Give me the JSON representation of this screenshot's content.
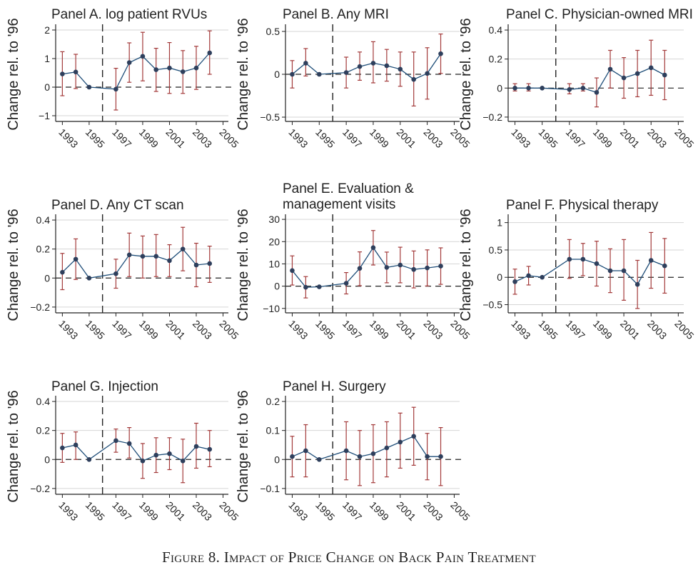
{
  "caption": "Figure 8. Impact of Price Change on Back Pain Treatment",
  "colors": {
    "line": "#1f4e79",
    "marker": "#2e3f5c",
    "ci": "#a33a3a",
    "grid": "#d6d6d6",
    "axis": "#222222",
    "text": "#222222"
  },
  "x_tick_labels": [
    "1993",
    "1995",
    "1997",
    "1999",
    "2001",
    "2003",
    "2005"
  ],
  "chart_data": [
    {
      "type": "line",
      "title": "Panel A. log patient RVUs",
      "ylabel": "Change rel. to '96",
      "xlabel": "",
      "xlim": [
        1992.5,
        2005.4
      ],
      "ylim": [
        -1.2,
        2.1
      ],
      "yticks": [
        2,
        1,
        0,
        -1
      ],
      "ytick_labels": [
        "2",
        "1",
        "0",
        "−1"
      ],
      "reference_year": 1996,
      "grid": true,
      "x": [
        1993,
        1994,
        1995,
        1997,
        1998,
        1999,
        2000,
        2001,
        2002,
        2003,
        2004
      ],
      "y": [
        0.46,
        0.53,
        0.0,
        -0.07,
        0.86,
        1.08,
        0.61,
        0.67,
        0.54,
        0.67,
        1.2
      ],
      "ci_low": [
        -0.3,
        -0.05,
        0.0,
        -0.8,
        0.17,
        0.22,
        -0.15,
        -0.22,
        -0.22,
        -0.08,
        0.45
      ],
      "ci_high": [
        1.24,
        1.15,
        0.0,
        0.66,
        1.55,
        1.92,
        1.36,
        1.56,
        1.28,
        1.43,
        1.97
      ]
    },
    {
      "type": "line",
      "title": "Panel B. Any MRI",
      "ylabel": "Change rel. to '96",
      "xlabel": "",
      "xlim": [
        1992.5,
        2005.4
      ],
      "ylim": [
        -0.55,
        0.55
      ],
      "yticks": [
        0.5,
        0,
        -0.5
      ],
      "ytick_labels": [
        "0.5",
        "0",
        "−0.5"
      ],
      "reference_year": 1996,
      "grid": true,
      "x": [
        1993,
        1994,
        1995,
        1997,
        1998,
        1999,
        2000,
        2001,
        2002,
        2003,
        2004
      ],
      "y": [
        0.0,
        0.13,
        0.0,
        0.02,
        0.09,
        0.13,
        0.1,
        0.06,
        -0.06,
        0.01,
        0.24
      ],
      "ci_low": [
        -0.16,
        -0.02,
        0.0,
        -0.16,
        -0.07,
        -0.1,
        -0.08,
        -0.14,
        -0.37,
        -0.29,
        0.01
      ],
      "ci_high": [
        0.16,
        0.3,
        0.0,
        0.2,
        0.26,
        0.38,
        0.29,
        0.26,
        0.26,
        0.31,
        0.47
      ]
    },
    {
      "type": "line",
      "title": "Panel C. Physician-owned MRI",
      "ylabel": "Change rel. to '96",
      "xlabel": "",
      "xlim": [
        1992.5,
        2005.4
      ],
      "ylim": [
        -0.23,
        0.42
      ],
      "yticks": [
        0.4,
        0.2,
        0,
        -0.2
      ],
      "ytick_labels": [
        "0.4",
        "0.2",
        "0",
        "−0.2"
      ],
      "reference_year": 1996,
      "grid": true,
      "x": [
        1993,
        1994,
        1995,
        1997,
        1998,
        1999,
        2000,
        2001,
        2002,
        2003,
        2004
      ],
      "y": [
        0.0,
        0.0,
        0.0,
        -0.01,
        0.0,
        -0.03,
        0.13,
        0.07,
        0.1,
        0.14,
        0.09
      ],
      "ci_low": [
        -0.02,
        -0.02,
        0.0,
        -0.04,
        -0.02,
        -0.13,
        0.0,
        -0.07,
        -0.06,
        -0.05,
        -0.08
      ],
      "ci_high": [
        0.03,
        0.03,
        0.0,
        0.03,
        0.03,
        0.07,
        0.26,
        0.21,
        0.26,
        0.33,
        0.26
      ]
    },
    {
      "type": "line",
      "title": "Panel D. Any CT scan",
      "ylabel": "Change rel. to '96",
      "xlabel": "",
      "xlim": [
        1992.5,
        2005.4
      ],
      "ylim": [
        -0.24,
        0.42
      ],
      "yticks": [
        0.4,
        0.2,
        0,
        -0.2
      ],
      "ytick_labels": [
        "0.4",
        "0.2",
        "0",
        "−0.2"
      ],
      "reference_year": 1996,
      "grid": true,
      "x": [
        1993,
        1994,
        1995,
        1997,
        1998,
        1999,
        2000,
        2001,
        2002,
        2003,
        2004
      ],
      "y": [
        0.04,
        0.13,
        0.0,
        0.03,
        0.16,
        0.15,
        0.15,
        0.12,
        0.2,
        0.09,
        0.1
      ],
      "ci_low": [
        -0.08,
        -0.01,
        0.0,
        -0.07,
        0.01,
        0.0,
        0.01,
        0.01,
        0.05,
        -0.06,
        -0.03
      ],
      "ci_high": [
        0.17,
        0.27,
        0.0,
        0.13,
        0.31,
        0.29,
        0.3,
        0.23,
        0.35,
        0.24,
        0.22
      ]
    },
    {
      "type": "line",
      "title": "Panel E. Evaluation & management visits",
      "title_lines": [
        "Panel E. Evaluation &",
        "management visits"
      ],
      "ylabel": "Change rel. to '96",
      "xlabel": "",
      "xlim": [
        1992.5,
        2005.4
      ],
      "ylim": [
        -12,
        31
      ],
      "yticks": [
        30,
        20,
        10,
        0,
        -10
      ],
      "ytick_labels": [
        "30",
        "20",
        "10",
        "0",
        "−10"
      ],
      "reference_year": 1996,
      "grid": true,
      "x": [
        1993,
        1994,
        1995,
        1997,
        1998,
        1999,
        2000,
        2001,
        2002,
        2003,
        2004
      ],
      "y": [
        7,
        -0.5,
        -0.3,
        1.3,
        8,
        17.3,
        8.4,
        9.5,
        7.5,
        8.2,
        9
      ],
      "ci_low": [
        0.5,
        -5.3,
        -0.3,
        -3.5,
        0.2,
        9.5,
        1.5,
        1.5,
        -0.8,
        0.1,
        0.8
      ],
      "ci_high": [
        13.6,
        4.3,
        -0.3,
        6.1,
        15.4,
        25,
        15.3,
        17.5,
        15.8,
        16.3,
        17.2
      ]
    },
    {
      "type": "line",
      "title": "Panel F. Physical therapy",
      "ylabel": "Change rel. to '96",
      "xlabel": "",
      "xlim": [
        1992.5,
        2005.4
      ],
      "ylim": [
        -0.65,
        1.1
      ],
      "yticks": [
        1,
        0.5,
        0,
        -0.5
      ],
      "ytick_labels": [
        "1",
        "0.5",
        "0",
        "−0.5"
      ],
      "reference_year": 1996,
      "grid": true,
      "x": [
        1993,
        1994,
        1995,
        1997,
        1998,
        1999,
        2000,
        2001,
        2002,
        2003,
        2004
      ],
      "y": [
        -0.08,
        0.03,
        0.0,
        0.33,
        0.33,
        0.25,
        0.12,
        0.12,
        -0.13,
        0.31,
        0.21
      ],
      "ci_low": [
        -0.31,
        -0.14,
        0.0,
        -0.02,
        0.03,
        -0.16,
        -0.28,
        -0.42,
        -0.57,
        -0.2,
        -0.29
      ],
      "ci_high": [
        0.15,
        0.2,
        0.0,
        0.69,
        0.62,
        0.66,
        0.52,
        0.69,
        0.31,
        0.82,
        0.71
      ]
    },
    {
      "type": "line",
      "title": "Panel G. Injection",
      "ylabel": "Change rel. to '96",
      "xlabel": "",
      "xlim": [
        1992.5,
        2005.4
      ],
      "ylim": [
        -0.24,
        0.42
      ],
      "yticks": [
        0.4,
        0.2,
        0,
        -0.2
      ],
      "ytick_labels": [
        "0.4",
        "0.2",
        "0",
        "−0.2"
      ],
      "reference_year": 1996,
      "grid": true,
      "x": [
        1993,
        1994,
        1995,
        1997,
        1998,
        1999,
        2000,
        2001,
        2002,
        2003,
        2004
      ],
      "y": [
        0.08,
        0.1,
        0.0,
        0.13,
        0.11,
        -0.01,
        0.03,
        0.04,
        -0.01,
        0.09,
        0.07
      ],
      "ci_low": [
        -0.02,
        0.0,
        0.0,
        0.05,
        0.01,
        -0.13,
        -0.09,
        -0.07,
        -0.16,
        -0.06,
        -0.05
      ],
      "ci_high": [
        0.18,
        0.19,
        0.0,
        0.21,
        0.22,
        0.11,
        0.15,
        0.15,
        0.14,
        0.25,
        0.2
      ]
    },
    {
      "type": "line",
      "title": "Panel H. Surgery",
      "ylabel": "Change rel. to '96",
      "xlabel": "",
      "xlim": [
        1992.5,
        2005.4
      ],
      "ylim": [
        -0.12,
        0.21
      ],
      "yticks": [
        0.2,
        0.1,
        0,
        -0.1
      ],
      "ytick_labels": [
        "0.2",
        "0.1",
        "0",
        "−0.1"
      ],
      "reference_year": 1996,
      "grid": true,
      "x": [
        1993,
        1994,
        1995,
        1997,
        1998,
        1999,
        2000,
        2001,
        2002,
        2003,
        2004
      ],
      "y": [
        0.01,
        0.03,
        0.0,
        0.03,
        0.01,
        0.02,
        0.04,
        0.06,
        0.08,
        0.01,
        0.01
      ],
      "ci_low": [
        -0.06,
        -0.06,
        0.0,
        -0.07,
        -0.09,
        -0.08,
        -0.06,
        -0.03,
        -0.02,
        -0.07,
        -0.09
      ],
      "ci_high": [
        0.08,
        0.12,
        0.0,
        0.13,
        0.1,
        0.12,
        0.13,
        0.16,
        0.18,
        0.09,
        0.11
      ]
    }
  ]
}
